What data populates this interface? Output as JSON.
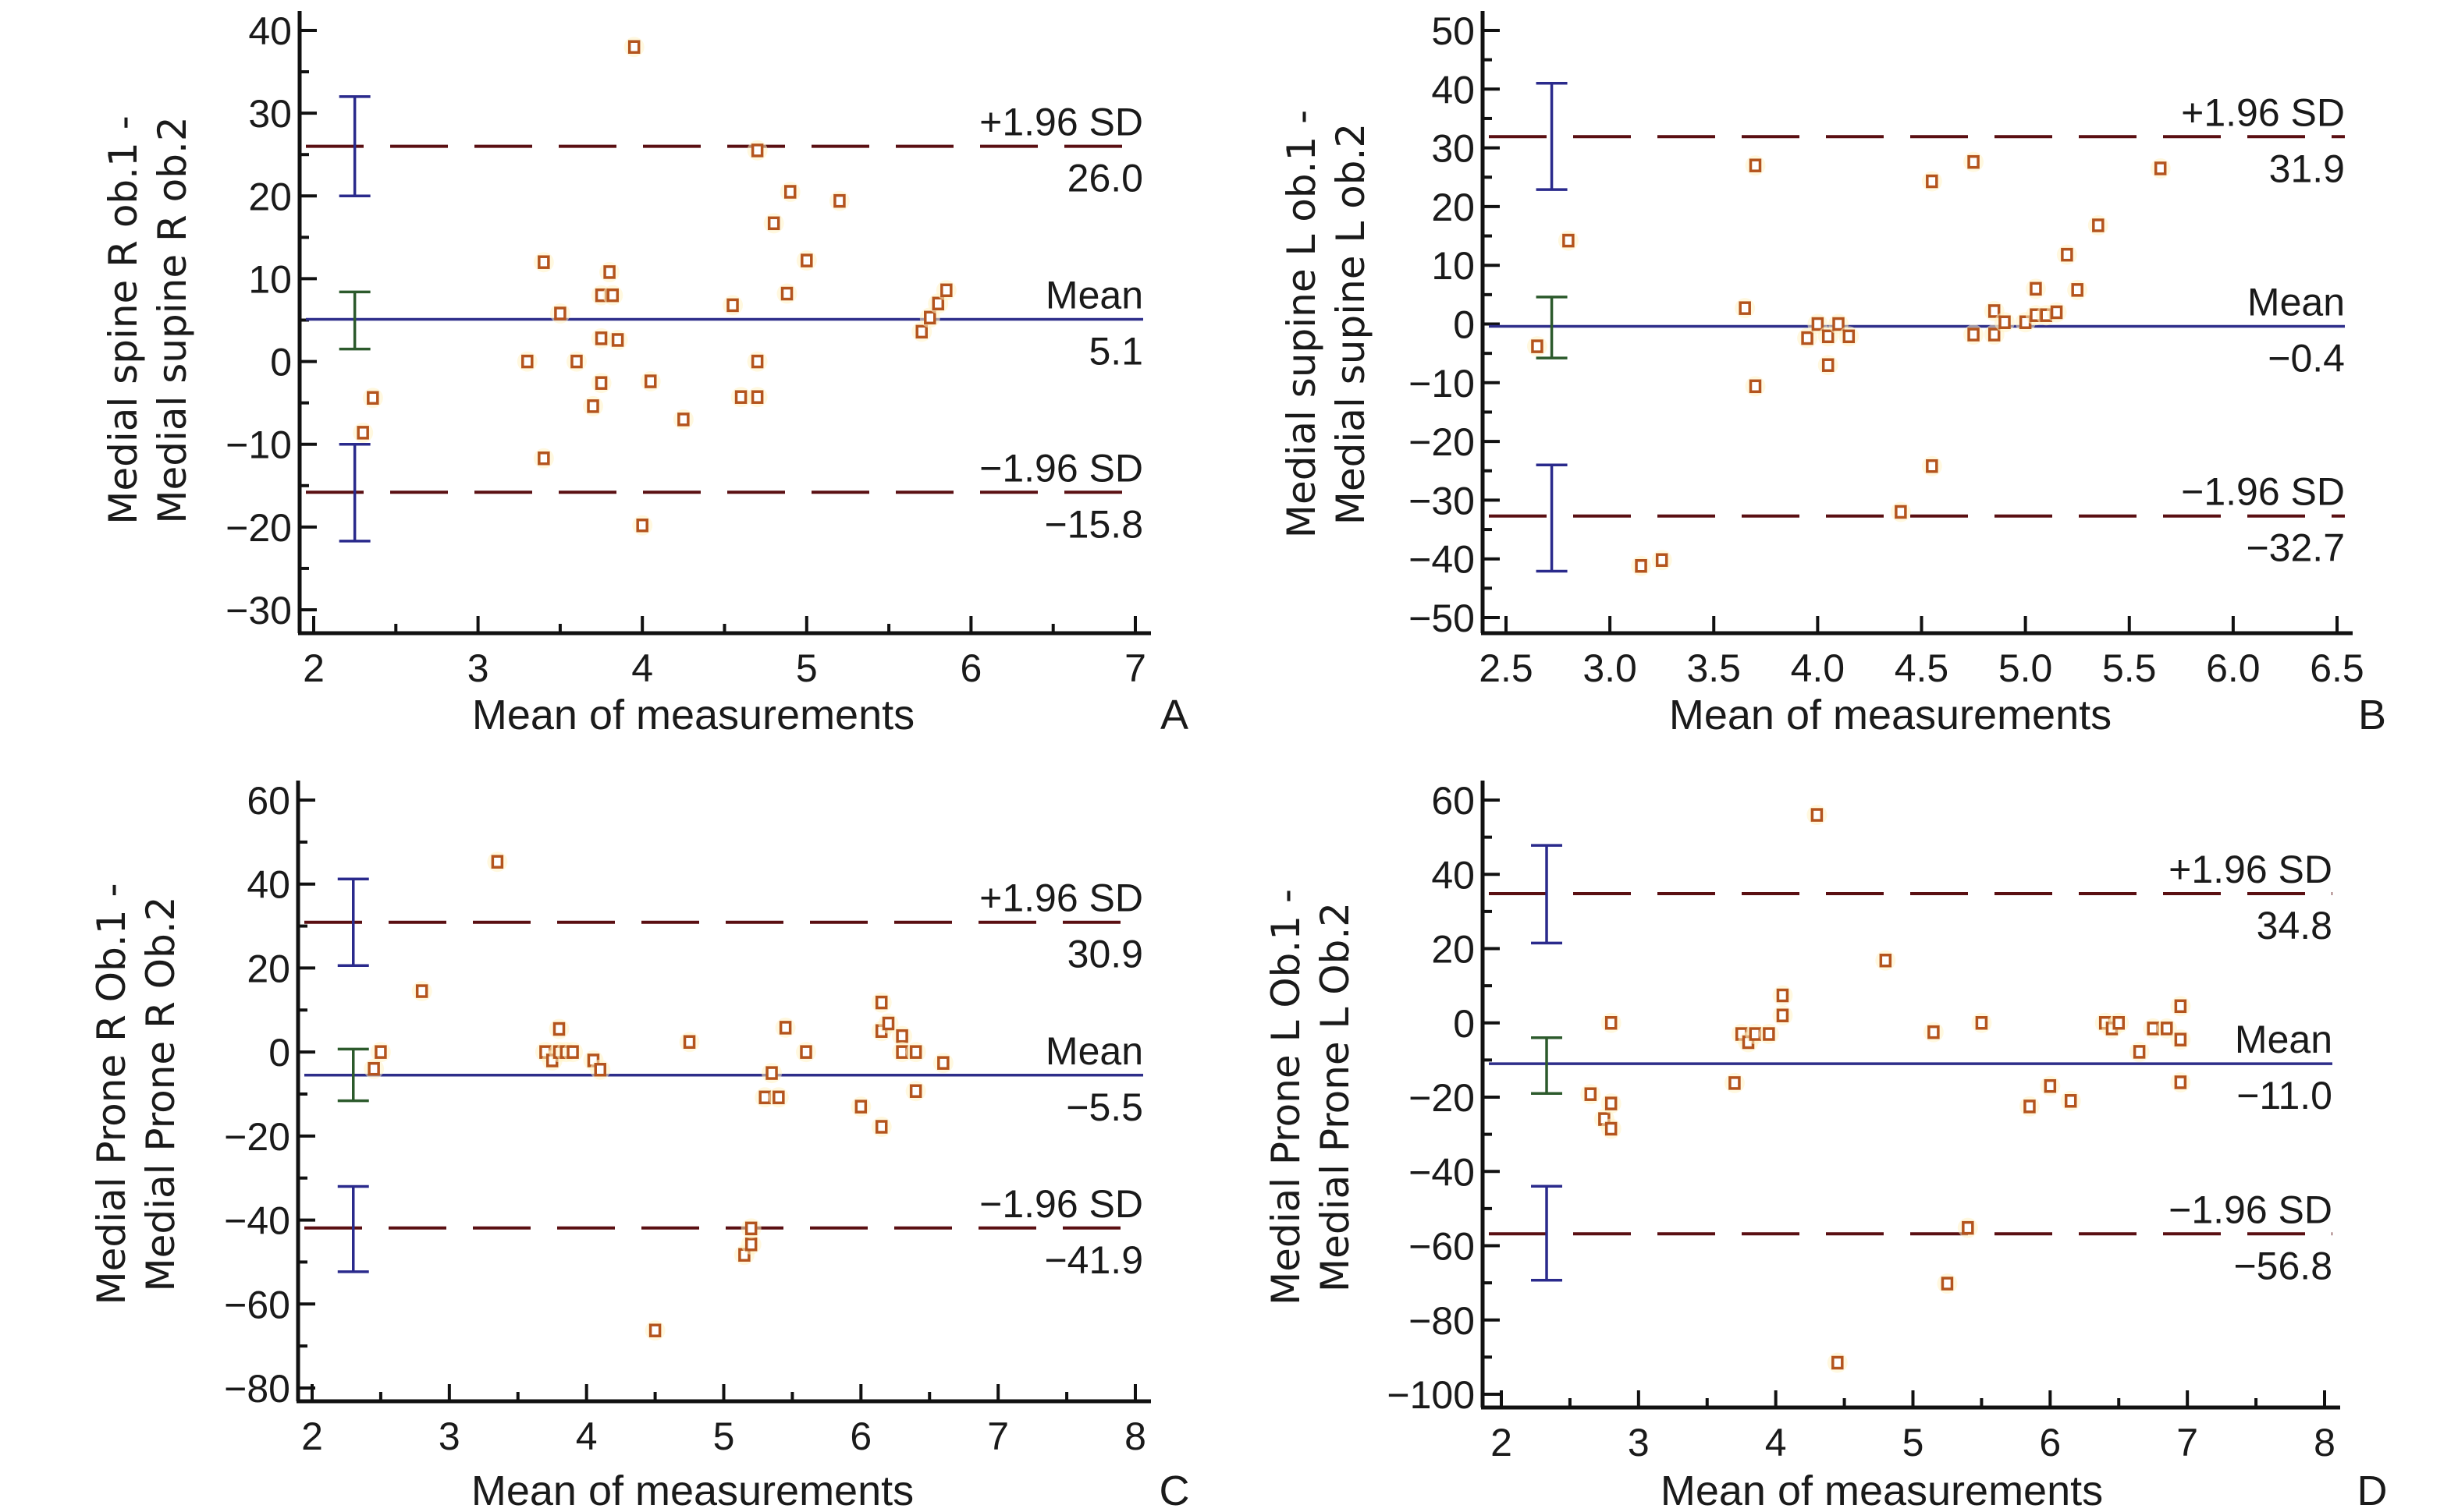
{
  "colors": {
    "axis": "#111111",
    "limit_line": "#5a0f12",
    "mean_line": "#2e2e8a",
    "ci_limit": "#2a2a8c",
    "ci_mean": "#2c5a2c",
    "marker_stroke": "#b4541e",
    "marker_fill": "#fff3c4"
  },
  "chart_data": [
    {
      "type": "scatter",
      "panel": "A",
      "title": "",
      "xlabel": "Mean of measurements",
      "ylabel": [
        "Medial spine R ob.1 -",
        "Medial supine R ob.2"
      ],
      "xlim": [
        2,
        7
      ],
      "ylim": [
        -30,
        40
      ],
      "xticks": [
        2,
        3,
        4,
        5,
        6,
        7
      ],
      "xtick_labels": [
        "2",
        "3",
        "4",
        "5",
        "6",
        "7"
      ],
      "x_minor_step": 0.5,
      "yticks": [
        -30,
        -20,
        -10,
        0,
        10,
        20,
        30,
        40
      ],
      "ytick_labels": [
        "−30",
        "−20",
        "−10",
        "0",
        "10",
        "20",
        "30",
        "40"
      ],
      "y_minor_step": 5,
      "grid": false,
      "lines": {
        "upper": {
          "label": "+1.96 SD",
          "value": 26.0,
          "value_label": "26.0"
        },
        "mean": {
          "label": "Mean",
          "value": 5.1,
          "value_label": "5.1"
        },
        "lower": {
          "label": "−1.96 SD",
          "value": -15.8,
          "value_label": "−15.8"
        }
      },
      "ci_bars": {
        "x": 2.25,
        "upper": [
          20.0,
          32.0
        ],
        "mean": [
          1.5,
          8.4
        ],
        "lower": [
          -21.7,
          -10.0
        ]
      },
      "points": [
        [
          2.3,
          -8.6
        ],
        [
          2.36,
          -4.4
        ],
        [
          3.3,
          0.0
        ],
        [
          3.4,
          12.0
        ],
        [
          3.4,
          -11.7
        ],
        [
          3.5,
          5.8
        ],
        [
          3.6,
          0.0
        ],
        [
          3.7,
          -5.4
        ],
        [
          3.75,
          -2.6
        ],
        [
          3.75,
          2.8
        ],
        [
          3.75,
          8.0
        ],
        [
          3.8,
          10.8
        ],
        [
          3.82,
          8.0
        ],
        [
          3.85,
          2.6
        ],
        [
          3.95,
          38.0
        ],
        [
          4.0,
          -19.8
        ],
        [
          4.05,
          -2.4
        ],
        [
          4.25,
          -7.0
        ],
        [
          4.55,
          6.8
        ],
        [
          4.6,
          -4.3
        ],
        [
          4.7,
          -4.3
        ],
        [
          4.7,
          25.5
        ],
        [
          4.7,
          0.0
        ],
        [
          4.8,
          16.7
        ],
        [
          4.88,
          8.2
        ],
        [
          4.9,
          20.5
        ],
        [
          5.0,
          12.2
        ],
        [
          5.2,
          19.4
        ],
        [
          5.7,
          3.6
        ],
        [
          5.75,
          5.3
        ],
        [
          5.8,
          7.0
        ],
        [
          5.85,
          8.6
        ]
      ]
    },
    {
      "type": "scatter",
      "panel": "B",
      "title": "",
      "xlabel": "Mean of measurements",
      "ylabel": [
        "Medial supine L ob.1 -",
        "Medial supine L ob.2"
      ],
      "xlim": [
        2.5,
        6.5
      ],
      "ylim": [
        -50,
        50
      ],
      "xticks": [
        2.5,
        3.0,
        3.5,
        4.0,
        4.5,
        5.0,
        5.5,
        6.0,
        6.5
      ],
      "xtick_labels": [
        "2.5",
        "3.0",
        "3.5",
        "4.0",
        "4.5",
        "5.0",
        "5.5",
        "6.0",
        "6.5"
      ],
      "x_minor_step": 0.5,
      "yticks": [
        -50,
        -40,
        -30,
        -20,
        -10,
        0,
        10,
        20,
        30,
        40,
        50
      ],
      "ytick_labels": [
        "−50",
        "−40",
        "−30",
        "−20",
        "−10",
        "0",
        "10",
        "20",
        "30",
        "40",
        "50"
      ],
      "y_minor_step": 5,
      "grid": false,
      "lines": {
        "upper": {
          "label": "+1.96 SD",
          "value": 31.9,
          "value_label": "31.9"
        },
        "mean": {
          "label": "Mean",
          "value": -0.4,
          "value_label": "−0.4"
        },
        "lower": {
          "label": "−1.96 SD",
          "value": -32.7,
          "value_label": "−32.7"
        }
      },
      "ci_bars": {
        "x": 2.72,
        "upper": [
          22.9,
          41.0
        ],
        "mean": [
          -5.8,
          4.6
        ],
        "lower": [
          -42.1,
          -24.0
        ]
      },
      "points": [
        [
          2.65,
          -3.8
        ],
        [
          2.8,
          14.2
        ],
        [
          3.15,
          -41.2
        ],
        [
          3.25,
          -40.2
        ],
        [
          3.65,
          2.7
        ],
        [
          3.7,
          27.0
        ],
        [
          3.7,
          -10.6
        ],
        [
          3.95,
          -2.4
        ],
        [
          4.0,
          0.0
        ],
        [
          4.05,
          -2.1
        ],
        [
          4.05,
          -7.0
        ],
        [
          4.1,
          0.0
        ],
        [
          4.15,
          -2.1
        ],
        [
          4.4,
          -32.0
        ],
        [
          4.55,
          24.3
        ],
        [
          4.55,
          -24.2
        ],
        [
          4.75,
          27.6
        ],
        [
          4.75,
          -1.8
        ],
        [
          4.85,
          -1.8
        ],
        [
          4.85,
          2.2
        ],
        [
          4.9,
          0.3
        ],
        [
          5.0,
          0.3
        ],
        [
          5.05,
          6.0
        ],
        [
          5.05,
          1.5
        ],
        [
          5.1,
          1.5
        ],
        [
          5.15,
          2.0
        ],
        [
          5.2,
          11.8
        ],
        [
          5.25,
          5.8
        ],
        [
          5.35,
          16.8
        ],
        [
          5.65,
          26.5
        ]
      ]
    },
    {
      "type": "scatter",
      "panel": "C",
      "title": "",
      "xlabel": "Mean of measurements",
      "ylabel": [
        "Medial Prone R Ob.1 -",
        "Medial Prone R Ob.2"
      ],
      "xlim": [
        2,
        8
      ],
      "ylim": [
        -80,
        60
      ],
      "xticks": [
        2,
        3,
        4,
        5,
        6,
        7,
        8
      ],
      "xtick_labels": [
        "2",
        "3",
        "4",
        "5",
        "6",
        "7",
        "8"
      ],
      "x_minor_step": 0.5,
      "yticks": [
        -80,
        -60,
        -40,
        -20,
        0,
        20,
        40,
        60
      ],
      "ytick_labels": [
        "−80",
        "−60",
        "−40",
        "−20",
        "0",
        "20",
        "40",
        "60"
      ],
      "y_minor_step": 10,
      "grid": false,
      "lines": {
        "upper": {
          "label": "+1.96 SD",
          "value": 30.9,
          "value_label": "30.9"
        },
        "mean": {
          "label": "Mean",
          "value": -5.5,
          "value_label": "−5.5"
        },
        "lower": {
          "label": "−1.96 SD",
          "value": -41.9,
          "value_label": "−41.9"
        }
      },
      "ci_bars": {
        "x": 2.3,
        "upper": [
          20.6,
          41.2
        ],
        "mean": [
          -11.6,
          0.7
        ],
        "lower": [
          -52.3,
          -32.0
        ]
      },
      "points": [
        [
          2.45,
          -4.0
        ],
        [
          2.5,
          0.0
        ],
        [
          2.8,
          14.5
        ],
        [
          3.35,
          45.3
        ],
        [
          3.7,
          0.0
        ],
        [
          3.75,
          -2.0
        ],
        [
          3.8,
          5.5
        ],
        [
          3.8,
          0.0
        ],
        [
          3.85,
          0.0
        ],
        [
          3.9,
          0.0
        ],
        [
          4.05,
          -2.0
        ],
        [
          4.1,
          -4.2
        ],
        [
          4.5,
          -66.3
        ],
        [
          4.75,
          2.4
        ],
        [
          5.15,
          -48.3
        ],
        [
          5.2,
          -45.8
        ],
        [
          5.2,
          -42.0
        ],
        [
          5.3,
          -10.8
        ],
        [
          5.35,
          -5.0
        ],
        [
          5.4,
          -10.8
        ],
        [
          5.45,
          5.8
        ],
        [
          5.6,
          0.0
        ],
        [
          6.0,
          -13.0
        ],
        [
          6.15,
          11.8
        ],
        [
          6.15,
          5.0
        ],
        [
          6.15,
          -17.8
        ],
        [
          6.2,
          6.8
        ],
        [
          6.3,
          3.8
        ],
        [
          6.3,
          0.0
        ],
        [
          6.4,
          0.0
        ],
        [
          6.4,
          -9.3
        ],
        [
          6.6,
          -2.6
        ]
      ]
    },
    {
      "type": "scatter",
      "panel": "D",
      "title": "",
      "xlabel": "Mean of measurements",
      "ylabel": [
        "Medial Prone L Ob.1 -",
        "Medial Prone L Ob.2"
      ],
      "xlim": [
        2,
        8
      ],
      "ylim": [
        -100,
        60
      ],
      "xticks": [
        2,
        3,
        4,
        5,
        6,
        7,
        8
      ],
      "xtick_labels": [
        "2",
        "3",
        "4",
        "5",
        "6",
        "7",
        "8"
      ],
      "x_minor_step": 0.5,
      "yticks": [
        -100,
        -80,
        -60,
        -40,
        -20,
        0,
        20,
        40,
        60
      ],
      "ytick_labels": [
        "−100",
        "−80",
        "−60",
        "−40",
        "−20",
        "0",
        "20",
        "40",
        "60"
      ],
      "y_minor_step": 10,
      "grid": false,
      "lines": {
        "upper": {
          "label": "+1.96 SD",
          "value": 34.8,
          "value_label": "34.8"
        },
        "mean": {
          "label": "Mean",
          "value": -11.0,
          "value_label": "−11.0"
        },
        "lower": {
          "label": "−1.96 SD",
          "value": -56.8,
          "value_label": "−56.8"
        }
      },
      "ci_bars": {
        "x": 2.33,
        "upper": [
          21.5,
          47.8
        ],
        "mean": [
          -19.0,
          -4.0
        ],
        "lower": [
          -69.3,
          -44.0
        ]
      },
      "points": [
        [
          2.65,
          -19.2
        ],
        [
          2.75,
          -25.9
        ],
        [
          2.8,
          -21.7
        ],
        [
          2.8,
          -28.5
        ],
        [
          2.8,
          0.0
        ],
        [
          3.7,
          -16.2
        ],
        [
          3.75,
          -3.0
        ],
        [
          3.8,
          -5.2
        ],
        [
          3.85,
          -3.0
        ],
        [
          3.95,
          -3.0
        ],
        [
          4.05,
          2.0
        ],
        [
          4.05,
          7.4
        ],
        [
          4.3,
          56.0
        ],
        [
          4.45,
          -91.5
        ],
        [
          4.8,
          16.8
        ],
        [
          5.15,
          -2.5
        ],
        [
          5.25,
          -70.2
        ],
        [
          5.4,
          -55.2
        ],
        [
          5.5,
          0.0
        ],
        [
          5.85,
          -22.5
        ],
        [
          6.0,
          -17.0
        ],
        [
          6.15,
          -21.0
        ],
        [
          6.4,
          0.0
        ],
        [
          6.45,
          -1.5
        ],
        [
          6.5,
          0.0
        ],
        [
          6.65,
          -7.8
        ],
        [
          6.75,
          -1.5
        ],
        [
          6.85,
          -1.5
        ],
        [
          6.95,
          4.5
        ],
        [
          6.95,
          -4.5
        ],
        [
          6.95,
          -16.0
        ]
      ]
    }
  ]
}
